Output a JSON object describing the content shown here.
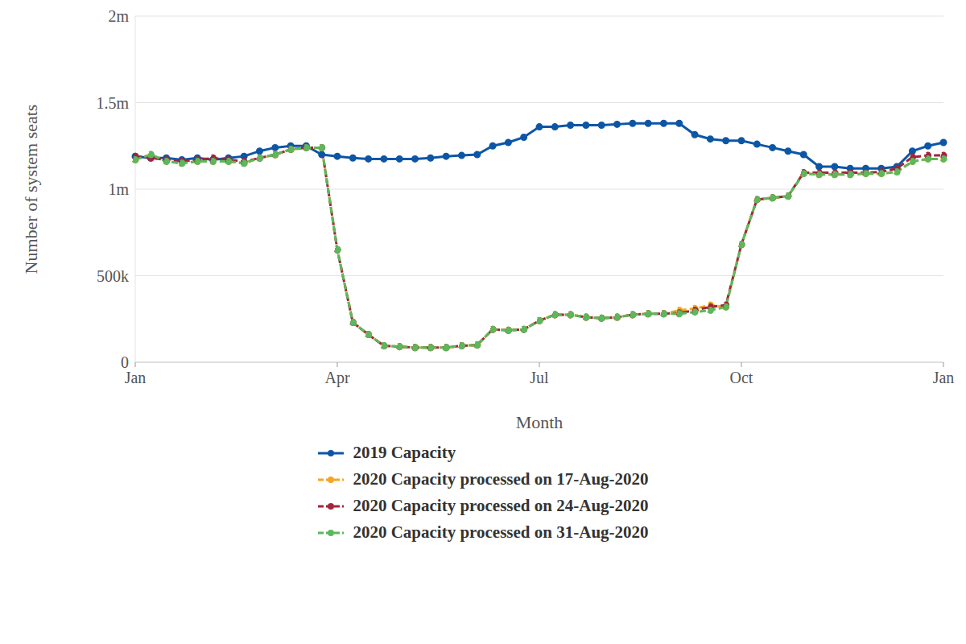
{
  "chart_data": {
    "type": "line",
    "x_label": "Month",
    "y_label": "Number of system seats",
    "categories": [
      "Jan",
      null,
      null,
      null,
      null,
      null,
      null,
      null,
      null,
      null,
      null,
      null,
      null,
      "Apr",
      null,
      null,
      null,
      null,
      null,
      null,
      null,
      null,
      null,
      null,
      null,
      null,
      "Jul",
      null,
      null,
      null,
      null,
      null,
      null,
      null,
      null,
      null,
      null,
      null,
      null,
      "Oct",
      null,
      null,
      null,
      null,
      null,
      null,
      null,
      null,
      null,
      null,
      null,
      null,
      "Jan"
    ],
    "ylim": [
      0,
      2000000
    ],
    "yticks": [
      0,
      {
        "value": 500000,
        "label": "500k"
      },
      {
        "value": 1000000,
        "label": "1m"
      },
      {
        "value": 1500000,
        "label": "1.5m"
      },
      {
        "value": 2000000,
        "label": "2m"
      }
    ],
    "grid": true,
    "legend": "bottom",
    "series": [
      {
        "name": "2019 Capacity",
        "color": "#0d56a6",
        "marker": "circle",
        "line_style": "solid",
        "values": [
          1190000,
          1180000,
          1180000,
          1170000,
          1180000,
          1170000,
          1180000,
          1190000,
          1220000,
          1240000,
          1250000,
          1250000,
          1200000,
          1190000,
          1180000,
          1175000,
          1175000,
          1175000,
          1175000,
          1180000,
          1190000,
          1195000,
          1200000,
          1250000,
          1270000,
          1300000,
          1360000,
          1360000,
          1370000,
          1370000,
          1370000,
          1375000,
          1380000,
          1380000,
          1380000,
          1380000,
          1315000,
          1290000,
          1280000,
          1280000,
          1260000,
          1240000,
          1220000,
          1200000,
          1130000,
          1130000,
          1120000,
          1120000,
          1120000,
          1130000,
          1220000,
          1250000,
          1270000
        ]
      },
      {
        "name": "2020 Capacity processed on 17-Aug-2020",
        "color": "#f5a623",
        "marker": "circle",
        "line_style": "dashed",
        "values": [
          1170000,
          1200000,
          1160000,
          1150000,
          1160000,
          1160000,
          1160000,
          1150000,
          1180000,
          1200000,
          1230000,
          1240000,
          1240000,
          650000,
          230000,
          160000,
          95000,
          90000,
          85000,
          85000,
          85000,
          95000,
          100000,
          190000,
          185000,
          190000,
          240000,
          275000,
          275000,
          260000,
          255000,
          260000,
          275000,
          280000,
          280000,
          300000,
          310000,
          330000,
          320000,
          680000,
          940000,
          950000,
          960000,
          1090000,
          1085000,
          1085000,
          1085000,
          1090000,
          1090000,
          1100000,
          1160000,
          1175000,
          1175000
        ]
      },
      {
        "name": "2020 Capacity processed on 24-Aug-2020",
        "color": "#a3243b",
        "marker": "circle",
        "line_style": "dashed",
        "values": [
          1190000,
          1180000,
          1170000,
          1160000,
          1170000,
          1180000,
          1170000,
          1160000,
          1180000,
          1200000,
          1230000,
          1240000,
          1240000,
          650000,
          230000,
          160000,
          95000,
          90000,
          85000,
          85000,
          85000,
          95000,
          100000,
          190000,
          185000,
          190000,
          240000,
          275000,
          275000,
          260000,
          255000,
          260000,
          275000,
          280000,
          280000,
          285000,
          300000,
          320000,
          330000,
          680000,
          940000,
          950000,
          960000,
          1095000,
          1095000,
          1095000,
          1095000,
          1095000,
          1100000,
          1120000,
          1185000,
          1195000,
          1195000
        ]
      },
      {
        "name": "2020 Capacity processed on 31-Aug-2020",
        "color": "#5cb85c",
        "marker": "circle",
        "line_style": "dashed",
        "values": [
          1170000,
          1200000,
          1160000,
          1150000,
          1160000,
          1160000,
          1160000,
          1150000,
          1180000,
          1200000,
          1230000,
          1240000,
          1240000,
          650000,
          230000,
          160000,
          95000,
          90000,
          85000,
          85000,
          85000,
          95000,
          100000,
          190000,
          185000,
          190000,
          240000,
          275000,
          275000,
          260000,
          255000,
          260000,
          275000,
          280000,
          280000,
          280000,
          290000,
          300000,
          320000,
          680000,
          940000,
          950000,
          960000,
          1090000,
          1085000,
          1085000,
          1085000,
          1090000,
          1090000,
          1100000,
          1160000,
          1175000,
          1175000
        ]
      }
    ]
  }
}
